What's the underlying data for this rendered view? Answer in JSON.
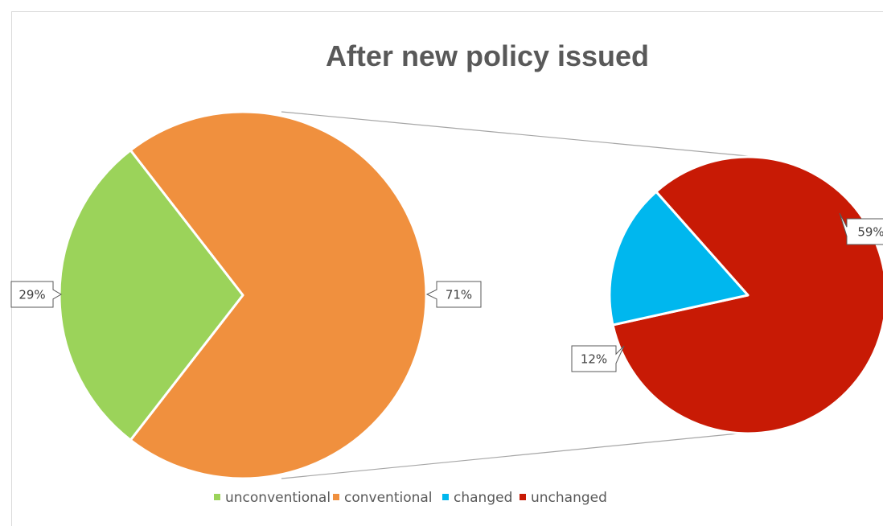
{
  "chart_data": {
    "type": "pie",
    "subtype": "pie-of-pie",
    "title": "After new policy issued",
    "primary_pie": {
      "slices": [
        {
          "name": "unconventional",
          "value": 29,
          "label": "29%",
          "color": "#9BD35A"
        },
        {
          "name": "conventional",
          "value": 71,
          "label": "71%",
          "color": "#F0903E"
        }
      ]
    },
    "secondary_pie": {
      "breakout_of": "conventional",
      "slices": [
        {
          "name": "changed",
          "value": 12,
          "label": "12%",
          "color": "#00B7EE"
        },
        {
          "name": "unchanged",
          "value": 59,
          "label": "59%",
          "color": "#C81A05"
        }
      ]
    },
    "legend": {
      "position": "bottom",
      "entries": [
        {
          "name": "unconventional",
          "color": "#9BD35A"
        },
        {
          "name": "conventional",
          "color": "#F0903E"
        },
        {
          "name": "changed",
          "color": "#00B7EE"
        },
        {
          "name": "unchanged",
          "color": "#C81A05"
        }
      ]
    }
  }
}
